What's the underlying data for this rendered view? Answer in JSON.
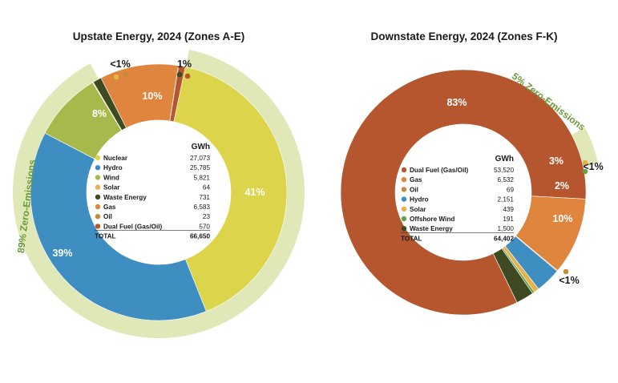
{
  "colors": {
    "Nuclear": "#dcd44a",
    "Hydro": "#3f8ec1",
    "Wind": "#a8b94c",
    "Solar": "#e8b24a",
    "Waste Energy": "#3d4a22",
    "Gas": "#e0853d",
    "Oil": "#c98a3c",
    "Dual Fuel (Gas/Oil)": "#b5562e",
    "Offshore Wind": "#6aa04b",
    "zero_ring": "#dfe8b6",
    "zero_text": "#6a9a3a"
  },
  "chart_data": [
    {
      "type": "pie",
      "title": "Upstate Energy, 2024 (Zones A-E)",
      "unit": "GWh",
      "categories": [
        "Nuclear",
        "Hydro",
        "Wind",
        "Solar",
        "Waste Energy",
        "Gas",
        "Oil",
        "Dual Fuel (Gas/Oil)"
      ],
      "values": [
        27073,
        25785,
        5821,
        64,
        731,
        6583,
        23,
        570
      ],
      "legend_values": [
        "27,073",
        "25,785",
        "5,821",
        "64",
        "731",
        "6,583",
        "23",
        "570"
      ],
      "total_label": "TOTAL",
      "total_value": "66,650",
      "percent_labels": [
        {
          "text": "41%"
        },
        {
          "text": "39%"
        },
        {
          "text": "8%"
        },
        {
          "text": "10%"
        },
        {
          "text": "<1%"
        },
        {
          "text": "1%"
        }
      ],
      "zero_emissions_label": "89% Zero-Emissions"
    },
    {
      "type": "pie",
      "title": "Downstate Energy, 2024 (Zones F-K)",
      "unit": "GWh",
      "categories": [
        "Dual Fuel (Gas/Oil)",
        "Gas",
        "Oil",
        "Hydro",
        "Solar",
        "Offshore Wind",
        "Waste Energy"
      ],
      "values": [
        53520,
        6532,
        69,
        2151,
        439,
        191,
        1500
      ],
      "legend_values": [
        "53,520",
        "6,532",
        "69",
        "2,151",
        "439",
        "191",
        "1,500"
      ],
      "total_label": "TOTAL",
      "total_value": "64,402",
      "percent_labels": [
        {
          "text": "83%"
        },
        {
          "text": "3%"
        },
        {
          "text": "<1%"
        },
        {
          "text": "2%"
        },
        {
          "text": "10%"
        },
        {
          "text": "<1%"
        }
      ],
      "zero_emissions_label": "5% Zero-Emissions"
    }
  ]
}
